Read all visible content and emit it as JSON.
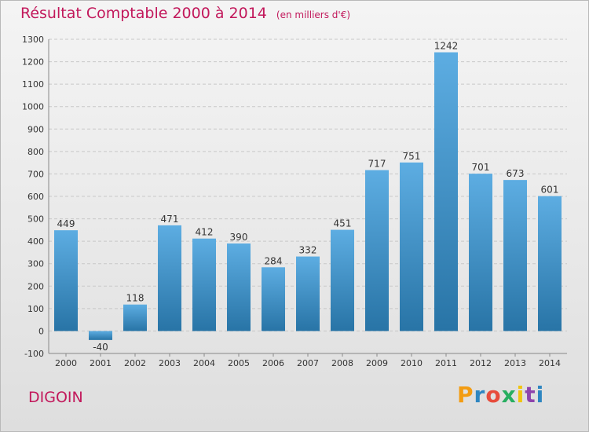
{
  "title": "Résultat Comptable 2000 à 2014",
  "subtitle": "(en milliers d'€)",
  "city": "DIGOIN",
  "logo": {
    "letters": [
      "P",
      "r",
      "o",
      "x",
      "i",
      "t",
      "i"
    ],
    "colors": [
      "#f39c12",
      "#2e86c1",
      "#e74c3c",
      "#27ae60",
      "#f1c40f",
      "#8e44ad",
      "#2e86c1"
    ]
  },
  "colors": {
    "bar_top": "#5dade2",
    "bar_bottom": "#2874a6",
    "title": "#c2185b"
  },
  "chart_data": {
    "type": "bar",
    "categories": [
      "2000",
      "2001",
      "2002",
      "2003",
      "2004",
      "2005",
      "2006",
      "2007",
      "2008",
      "2009",
      "2010",
      "2011",
      "2012",
      "2013",
      "2014"
    ],
    "values": [
      449,
      -40,
      118,
      471,
      412,
      390,
      284,
      332,
      451,
      717,
      751,
      1242,
      701,
      673,
      601
    ],
    "ylim": [
      -100,
      1300
    ],
    "yticks": [
      -100,
      0,
      100,
      200,
      300,
      400,
      500,
      600,
      700,
      800,
      900,
      1000,
      1100,
      1200,
      1300
    ],
    "grid": true
  }
}
